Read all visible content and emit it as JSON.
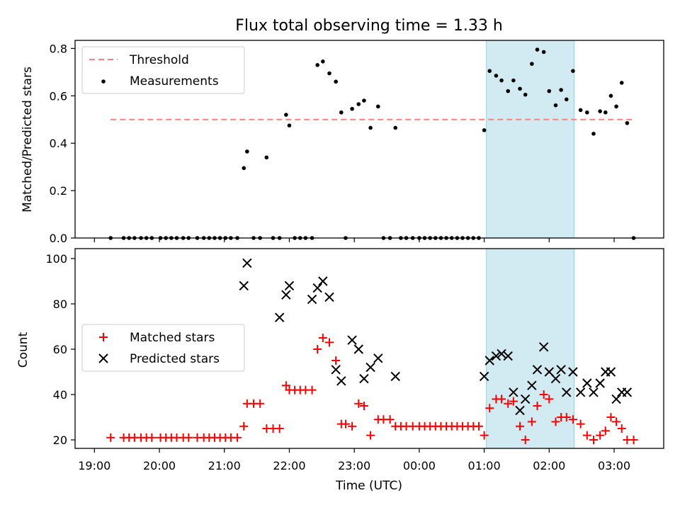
{
  "figure_title": "Flux total observing time = 1.33 h",
  "colors": {
    "threshold": "#ff7f7f",
    "measurements": "#000000",
    "matched": "#ff0000",
    "predicted": "#000000",
    "highlight": "#add8e6"
  },
  "chart_data": [
    {
      "type": "scatter",
      "panel": "top",
      "title": "Flux total observing time = 1.33 h",
      "xlabel": "",
      "ylabel": "Matched/Predicted stars",
      "ylim": [
        0,
        0.84
      ],
      "yticks": [
        0.0,
        0.2,
        0.4,
        0.6,
        0.8
      ],
      "ytick_labels": [
        "0.0",
        "0.2",
        "0.4",
        "0.6",
        "0.8"
      ],
      "highlight_span": [
        "01:02",
        "02:23"
      ],
      "legend": {
        "location": "upper left",
        "entries": [
          "Threshold",
          "Measurements"
        ]
      },
      "threshold": {
        "name": "Threshold",
        "y": 0.5,
        "x_range": [
          "19:15",
          "03:18"
        ]
      },
      "series": [
        {
          "name": "Measurements",
          "x": [
            "19:15",
            "19:27",
            "19:32",
            "19:37",
            "19:43",
            "19:48",
            "19:53",
            "20:01",
            "20:06",
            "20:11",
            "20:16",
            "20:22",
            "20:27",
            "20:35",
            "20:41",
            "20:46",
            "20:51",
            "20:56",
            "21:01",
            "21:06",
            "21:12",
            "21:18",
            "21:21",
            "21:27",
            "21:33",
            "21:39",
            "21:45",
            "21:51",
            "21:57",
            "22:00",
            "22:05",
            "22:10",
            "22:15",
            "22:21",
            "22:26",
            "22:31",
            "22:37",
            "22:43",
            "22:48",
            "22:52",
            "22:58",
            "23:04",
            "23:09",
            "23:15",
            "23:22",
            "23:27",
            "23:33",
            "23:38",
            "23:43",
            "23:48",
            "23:54",
            "00:00",
            "00:05",
            "00:10",
            "00:15",
            "00:20",
            "00:25",
            "00:30",
            "00:35",
            "00:40",
            "00:45",
            "00:50",
            "00:55",
            "01:00",
            "01:05",
            "01:11",
            "01:16",
            "01:22",
            "01:27",
            "01:33",
            "01:38",
            "01:44",
            "01:49",
            "01:55",
            "02:00",
            "02:06",
            "02:11",
            "02:16",
            "02:22",
            "02:29",
            "02:35",
            "02:41",
            "02:47",
            "02:52",
            "02:57",
            "03:02",
            "03:07",
            "03:12",
            "03:18"
          ],
          "y": [
            0,
            0,
            0,
            0,
            0,
            0,
            0,
            0,
            0,
            0,
            0,
            0,
            0,
            0,
            0,
            0,
            0,
            0,
            0,
            0,
            0,
            0.295,
            0.365,
            0,
            0,
            0.34,
            0,
            0,
            0.52,
            0.475,
            0,
            0,
            0,
            0,
            0.73,
            0.745,
            0.695,
            0.66,
            0.53,
            0,
            0.545,
            0.565,
            0.58,
            0.465,
            0.555,
            0,
            0,
            0.465,
            0,
            0,
            0,
            0,
            0,
            0,
            0,
            0,
            0,
            0,
            0,
            0,
            0,
            0,
            0,
            0.455,
            0.705,
            0.685,
            0.665,
            0.62,
            0.665,
            0.63,
            0.605,
            0.735,
            0.795,
            0.785,
            0.62,
            0.56,
            0.625,
            0.585,
            0.705,
            0.54,
            0.53,
            0.44,
            0.535,
            0.53,
            0.6,
            0.555,
            0.655,
            0.485,
            0
          ]
        }
      ]
    },
    {
      "type": "scatter",
      "panel": "bottom",
      "xlabel": "Time (UTC)",
      "ylabel": "Count",
      "ylim": [
        16,
        101
      ],
      "yticks": [
        20,
        40,
        60,
        80,
        100
      ],
      "ytick_labels": [
        "20",
        "40",
        "60",
        "80",
        "100"
      ],
      "xticks": [
        "19:00",
        "20:00",
        "21:00",
        "22:00",
        "23:00",
        "00:00",
        "01:00",
        "02:00",
        "03:00"
      ],
      "highlight_span": [
        "01:02",
        "02:23"
      ],
      "legend": {
        "location": "center left",
        "entries": [
          "Matched stars",
          "Predicted stars"
        ]
      },
      "series": [
        {
          "name": "Matched stars",
          "x": [
            "19:15",
            "19:27",
            "19:32",
            "19:37",
            "19:43",
            "19:48",
            "19:53",
            "20:01",
            "20:06",
            "20:11",
            "20:16",
            "20:22",
            "20:27",
            "20:35",
            "20:41",
            "20:46",
            "20:51",
            "20:56",
            "21:01",
            "21:06",
            "21:12",
            "21:18",
            "21:21",
            "21:27",
            "21:33",
            "21:39",
            "21:45",
            "21:51",
            "21:57",
            "22:00",
            "22:05",
            "22:10",
            "22:15",
            "22:21",
            "22:26",
            "22:31",
            "22:37",
            "22:43",
            "22:48",
            "22:52",
            "22:58",
            "23:04",
            "23:09",
            "23:15",
            "23:22",
            "23:27",
            "23:33",
            "23:38",
            "23:43",
            "23:48",
            "23:54",
            "00:00",
            "00:05",
            "00:10",
            "00:15",
            "00:20",
            "00:25",
            "00:30",
            "00:35",
            "00:40",
            "00:45",
            "00:50",
            "00:55",
            "01:00",
            "01:05",
            "01:11",
            "01:16",
            "01:22",
            "01:27",
            "01:33",
            "01:38",
            "01:44",
            "01:49",
            "01:55",
            "02:00",
            "02:06",
            "02:11",
            "02:16",
            "02:22",
            "02:29",
            "02:35",
            "02:41",
            "02:47",
            "02:52",
            "02:57",
            "03:02",
            "03:07",
            "03:12",
            "03:18"
          ],
          "y": [
            21,
            21,
            21,
            21,
            21,
            21,
            21,
            21,
            21,
            21,
            21,
            21,
            21,
            21,
            21,
            21,
            21,
            21,
            21,
            21,
            21,
            26,
            36,
            36,
            36,
            25,
            25,
            25,
            44,
            42,
            42,
            42,
            42,
            42,
            60,
            65,
            63,
            55,
            27,
            27,
            26,
            36,
            35,
            22,
            29,
            29,
            29,
            26,
            26,
            26,
            26,
            26,
            26,
            26,
            26,
            26,
            26,
            26,
            26,
            26,
            26,
            26,
            26,
            22,
            34,
            38,
            38,
            36,
            37,
            26,
            20,
            28,
            35,
            40,
            38,
            28,
            30,
            30,
            29,
            27,
            22,
            20,
            22,
            24,
            30,
            28,
            25,
            20,
            20
          ]
        },
        {
          "name": "Predicted stars",
          "x": [
            "21:18",
            "21:21",
            "21:51",
            "21:57",
            "22:00",
            "22:21",
            "22:26",
            "22:31",
            "22:37",
            "22:43",
            "22:48",
            "22:58",
            "23:04",
            "23:09",
            "23:15",
            "23:22",
            "23:38",
            "01:00",
            "01:05",
            "01:11",
            "01:16",
            "01:22",
            "01:27",
            "01:33",
            "01:38",
            "01:44",
            "01:49",
            "01:55",
            "02:00",
            "02:06",
            "02:11",
            "02:16",
            "02:22",
            "02:29",
            "02:35",
            "02:41",
            "02:47",
            "02:52",
            "02:57",
            "03:02",
            "03:07",
            "03:12"
          ],
          "y": [
            88,
            98,
            74,
            84,
            88,
            82,
            87,
            90,
            83,
            51,
            46,
            64,
            60,
            47,
            52,
            56,
            48,
            48,
            55,
            57,
            58,
            57,
            41,
            33,
            38,
            44,
            51,
            61,
            50,
            47,
            51,
            41,
            50,
            41,
            45,
            41,
            45,
            50,
            50,
            38,
            41,
            41
          ]
        }
      ]
    }
  ]
}
